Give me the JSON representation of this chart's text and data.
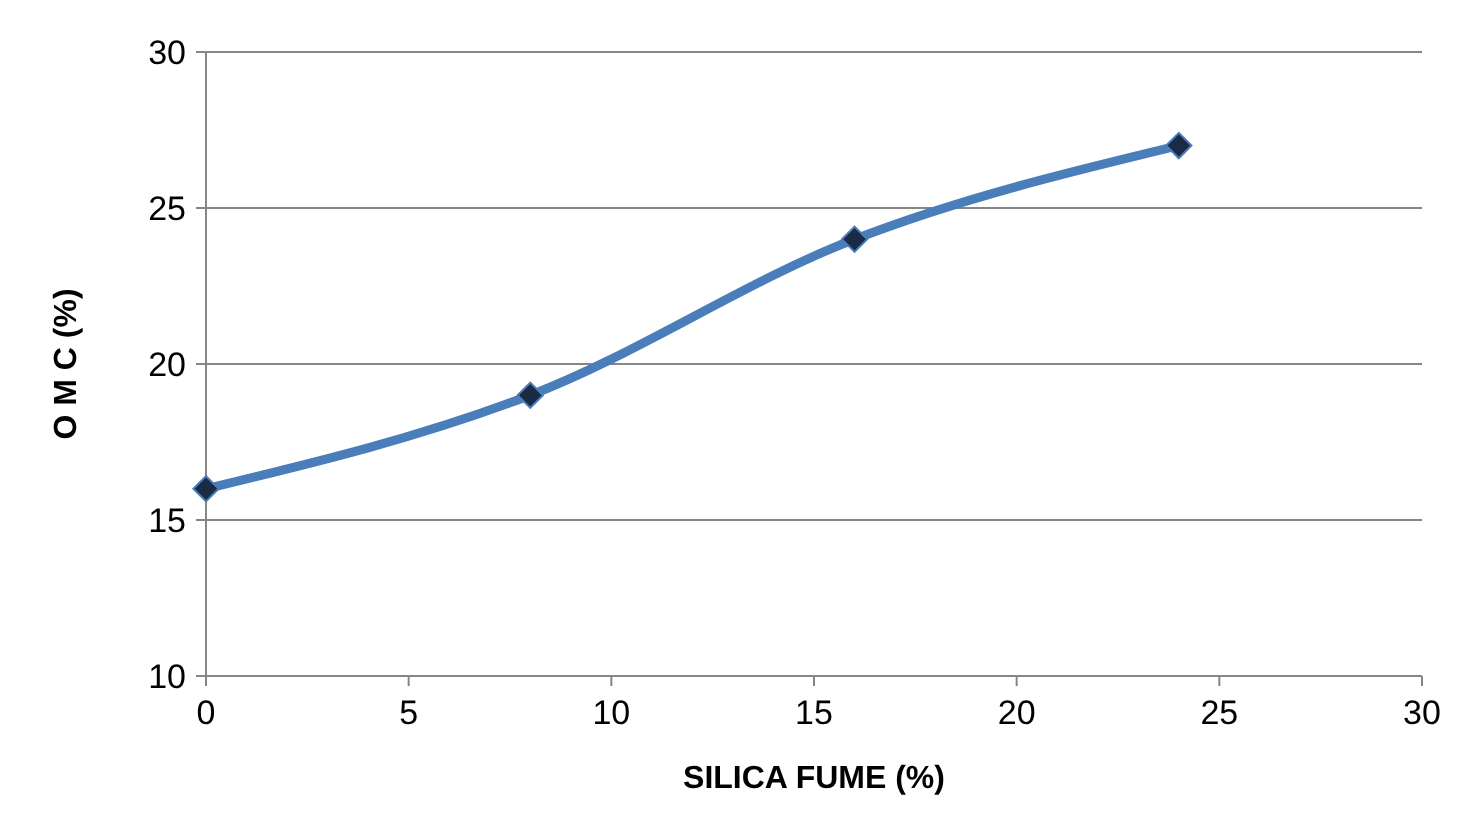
{
  "chart_data": {
    "type": "line",
    "xlabel": "SILICA FUME (%)",
    "ylabel": "O M C (%)",
    "x": [
      0,
      8,
      16,
      24
    ],
    "series": [
      {
        "color": "#4a7ebb",
        "values": [
          16,
          19,
          24,
          27
        ]
      }
    ],
    "xlim": [
      0,
      30
    ],
    "xticks": [
      0,
      5,
      10,
      15,
      20,
      25,
      30
    ],
    "ylim": [
      10,
      30
    ],
    "yticks": [
      10,
      15,
      20,
      25,
      30
    ],
    "grid": "y",
    "marker": "diamond",
    "line_style": "solid"
  }
}
